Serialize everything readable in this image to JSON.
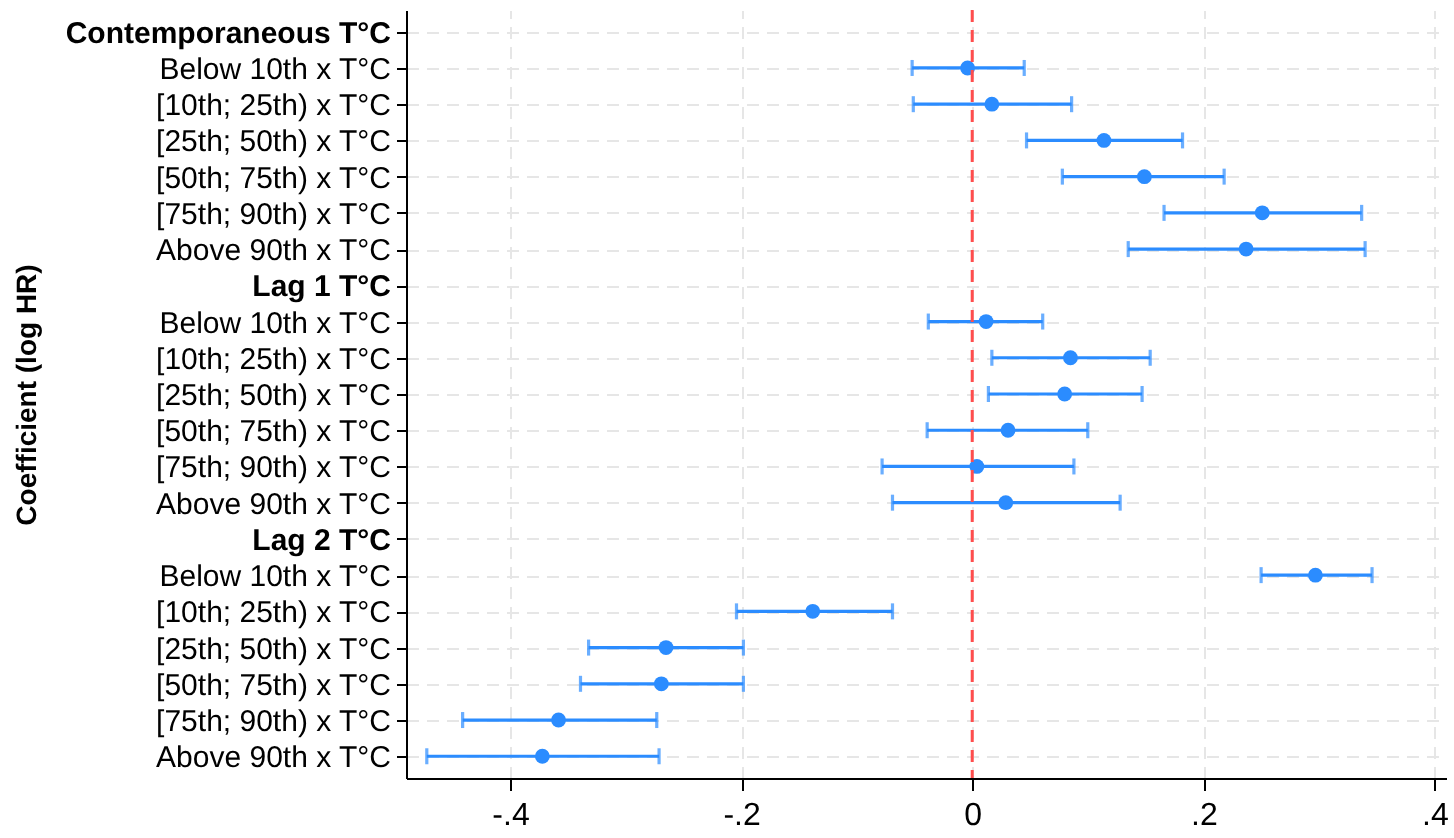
{
  "chart_data": {
    "type": "scatter",
    "orientation": "horizontal",
    "ylabel": "Coefficient (log HR)",
    "categories": [
      "Contemporaneous T°C",
      "Below 10th x T°C",
      "[10th; 25th) x T°C",
      "[25th; 50th) x T°C",
      "[50th; 75th) x T°C",
      "[75th; 90th) x T°C",
      "Above 90th x T°C",
      "Lag 1 T°C",
      "Below 10th x T°C",
      "[10th; 25th) x T°C",
      "[25th; 50th) x T°C",
      "[50th; 75th) x T°C",
      "[75th; 90th) x T°C",
      "Above 90th x T°C",
      "Lag 2 T°C",
      "Below 10th x T°C",
      "[10th; 25th) x T°C",
      "[25th; 50th) x T°C",
      "[50th; 75th) x T°C",
      "[75th; 90th) x T°C",
      "Above 90th x T°C"
    ],
    "values": [
      null,
      -0.004,
      0.017,
      0.114,
      0.149,
      0.251,
      0.237,
      null,
      0.012,
      0.085,
      0.08,
      0.031,
      0.004,
      0.029,
      null,
      0.297,
      -0.138,
      -0.265,
      -0.269,
      -0.358,
      -0.372
    ],
    "errors": [
      null,
      [
        -0.052,
        0.045
      ],
      [
        -0.051,
        0.086
      ],
      [
        0.047,
        0.182
      ],
      [
        0.078,
        0.218
      ],
      [
        0.166,
        0.337
      ],
      [
        0.135,
        0.34
      ],
      null,
      [
        -0.038,
        0.061
      ],
      [
        0.017,
        0.154
      ],
      [
        0.014,
        0.147
      ],
      [
        -0.039,
        0.1
      ],
      [
        -0.078,
        0.088
      ],
      [
        -0.069,
        0.128
      ],
      null,
      [
        0.25,
        0.346
      ],
      [
        -0.204,
        -0.069
      ],
      [
        -0.332,
        -0.198
      ],
      [
        -0.339,
        -0.198
      ],
      [
        -0.441,
        -0.273
      ],
      [
        -0.472,
        -0.271
      ]
    ],
    "color": "#2b8cff",
    "marker": "circle",
    "xlim": [
      -0.49,
      0.41
    ],
    "xticks": [
      {
        "value": -0.4,
        "label": "-.4"
      },
      {
        "value": -0.2,
        "label": "-.2"
      },
      0,
      {
        "value": 0.2,
        "label": ".2"
      },
      {
        "value": 0.4,
        "label": ".4"
      }
    ],
    "ref_lines": [
      {
        "axis": "x",
        "value": 0,
        "color": "#ff4d4d",
        "line_style": "dashed"
      }
    ],
    "grid": true
  }
}
